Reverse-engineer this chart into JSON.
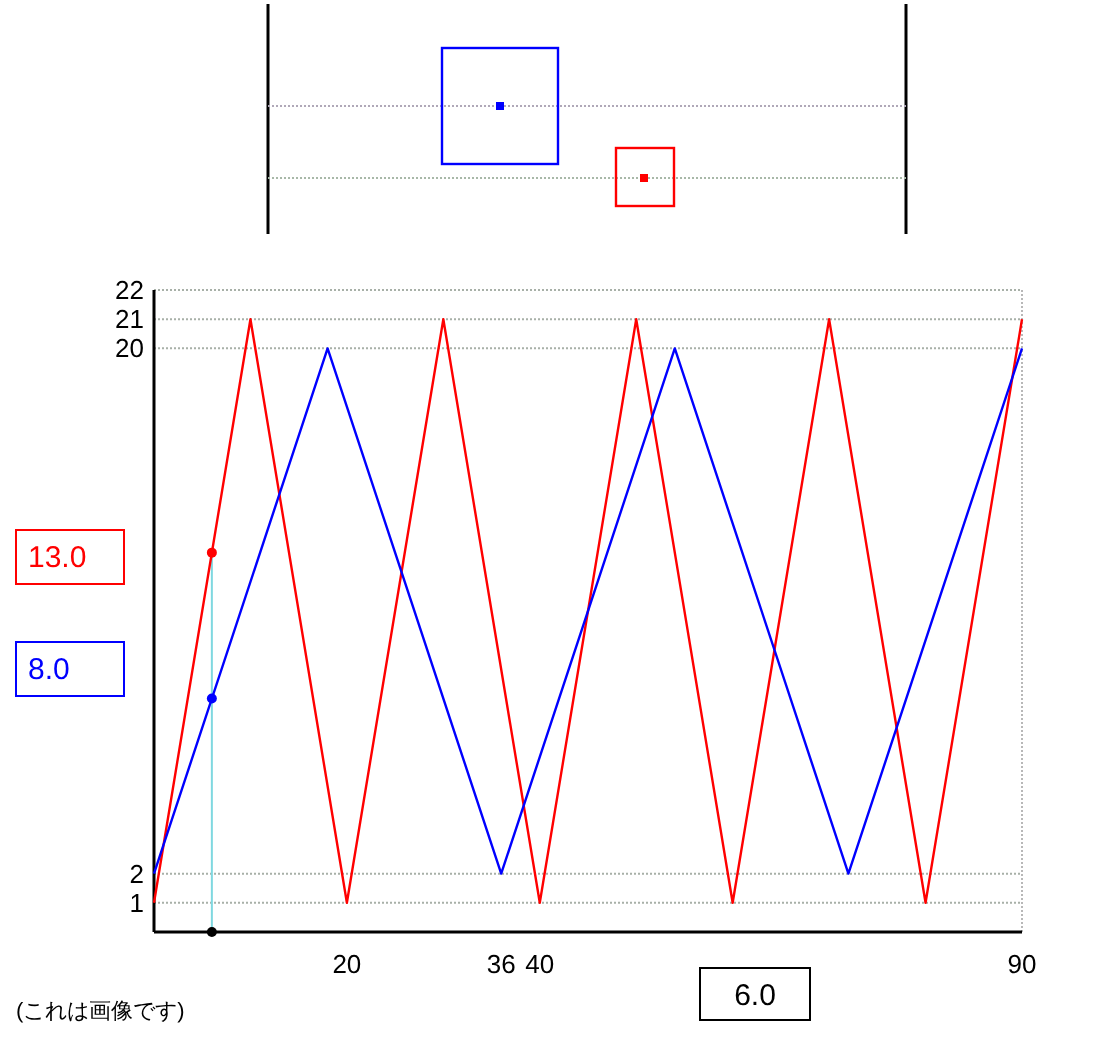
{
  "chart_data": {
    "type": "line",
    "xlim": [
      0,
      90
    ],
    "ylim": [
      0,
      22
    ],
    "xticks": [
      20,
      36,
      40,
      90
    ],
    "yticks": [
      1,
      2,
      20,
      21,
      22
    ],
    "grid": "y",
    "marker": "none",
    "line_style": "solid",
    "series": [
      {
        "color": "#ff0000",
        "x": [
          0,
          10,
          20,
          30,
          40,
          50,
          60,
          70,
          80,
          90
        ],
        "values": [
          1,
          21,
          1,
          21,
          1,
          21,
          1,
          21,
          1,
          21
        ]
      },
      {
        "color": "#0000ff",
        "x": [
          0,
          18,
          36,
          54,
          72,
          90
        ],
        "values": [
          2,
          20,
          2,
          20,
          2,
          20
        ]
      }
    ],
    "ref_lines": [
      {
        "axis": "x",
        "value": 6,
        "color": "#7fd8e0"
      }
    ],
    "annotations": [
      "13.0",
      "8.0",
      "6.0",
      "(これは画像です)"
    ]
  }
}
